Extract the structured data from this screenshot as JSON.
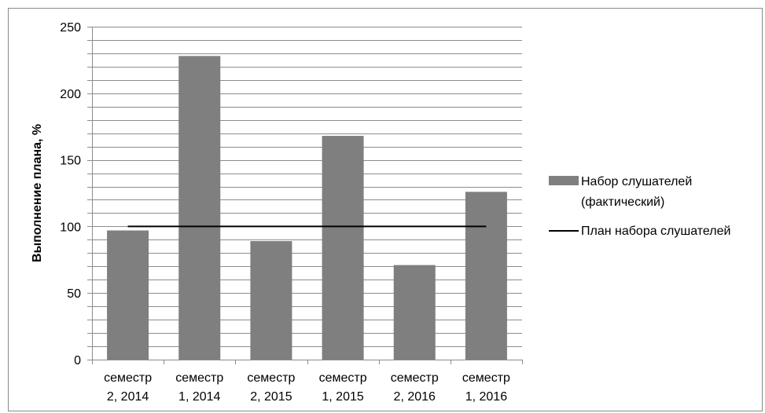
{
  "chart_data": {
    "type": "bar",
    "title": "",
    "xlabel": "",
    "ylabel": "Выполнение плана, %",
    "ylim": [
      0,
      250
    ],
    "y_major_ticks": [
      0,
      50,
      100,
      150,
      200,
      250
    ],
    "y_minor_step": 10,
    "grid": true,
    "legend_position": "right",
    "categories": [
      [
        "семестр",
        "2, 2014"
      ],
      [
        "семестр",
        "1, 2014"
      ],
      [
        "семестр",
        "2, 2015"
      ],
      [
        "семестр",
        "1, 2015"
      ],
      [
        "семестр",
        "2, 2016"
      ],
      [
        "семестр",
        "1, 2016"
      ]
    ],
    "series": [
      {
        "name_lines": [
          "Набор слушателей",
          "(фактический)"
        ],
        "kind": "bar",
        "color": "#7f7f7f",
        "values": [
          97,
          228,
          89,
          168,
          71,
          126
        ]
      },
      {
        "name_lines": [
          "План набора слушателей"
        ],
        "kind": "line",
        "color": "#000000",
        "values": [
          100,
          100,
          100,
          100,
          100,
          100
        ]
      }
    ]
  }
}
